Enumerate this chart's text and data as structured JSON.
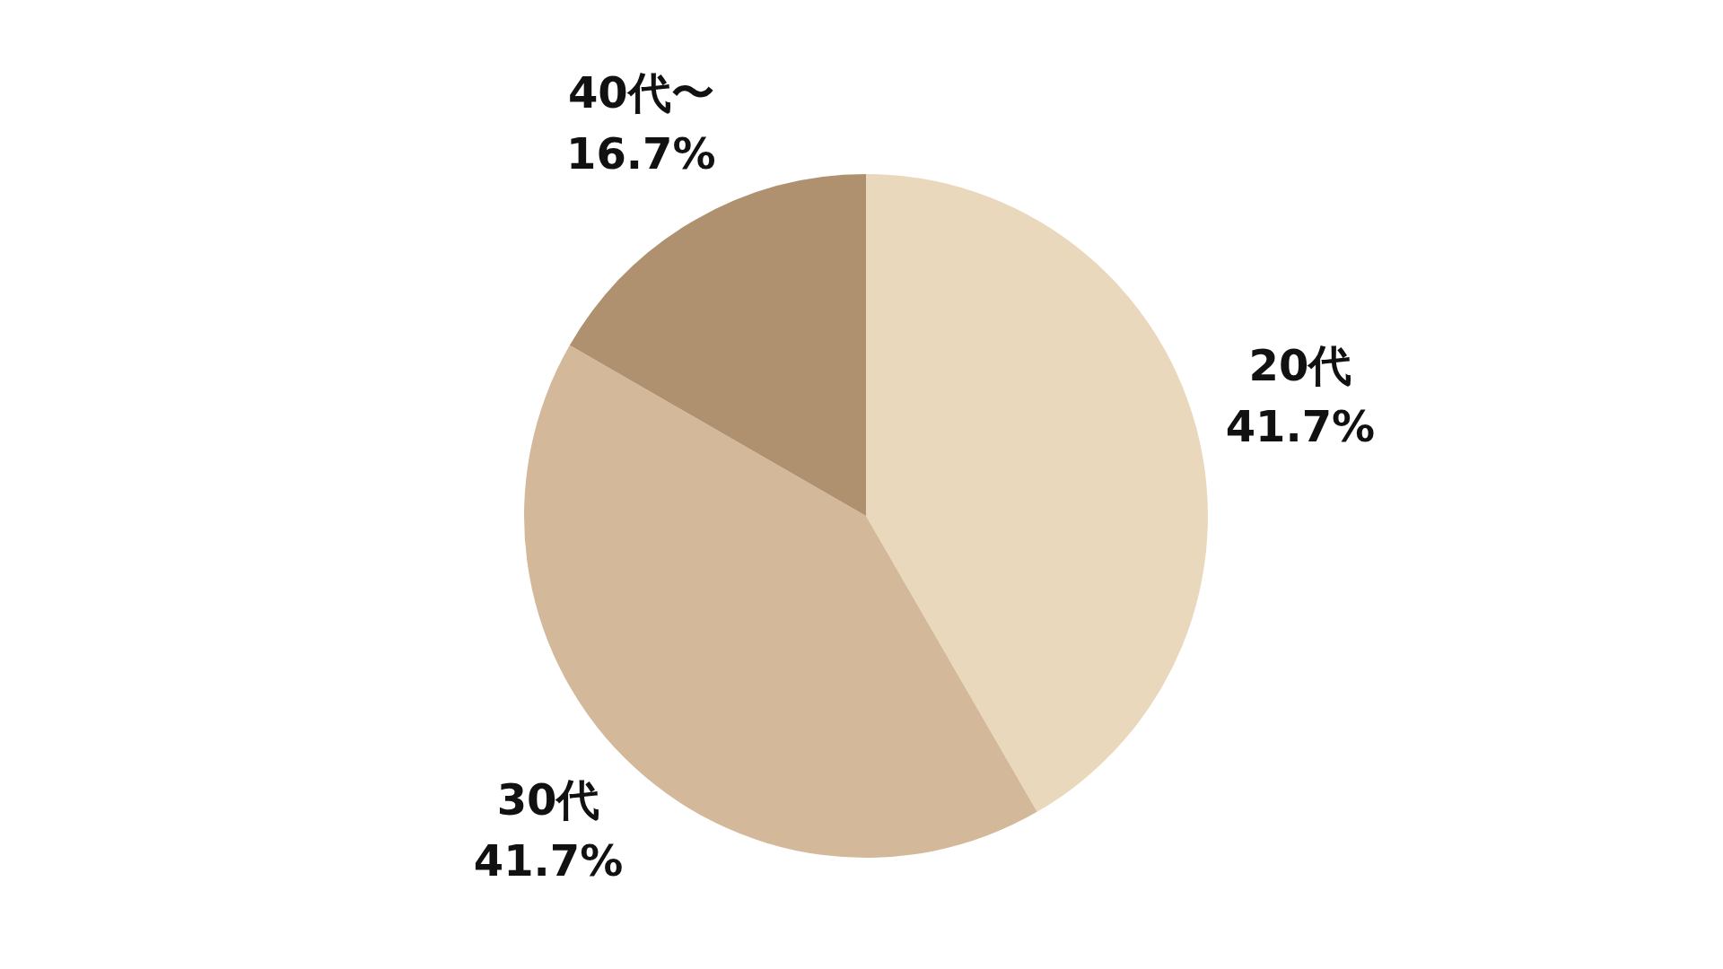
{
  "chart_data": {
    "type": "pie",
    "categories": [
      "20代",
      "30代",
      "40代〜"
    ],
    "values": [
      41.7,
      41.7,
      16.7
    ],
    "colors": [
      "#ead8bc",
      "#d3b99a",
      "#af916f"
    ],
    "value_labels": [
      "41.7%",
      "41.7%",
      "16.7%"
    ]
  }
}
